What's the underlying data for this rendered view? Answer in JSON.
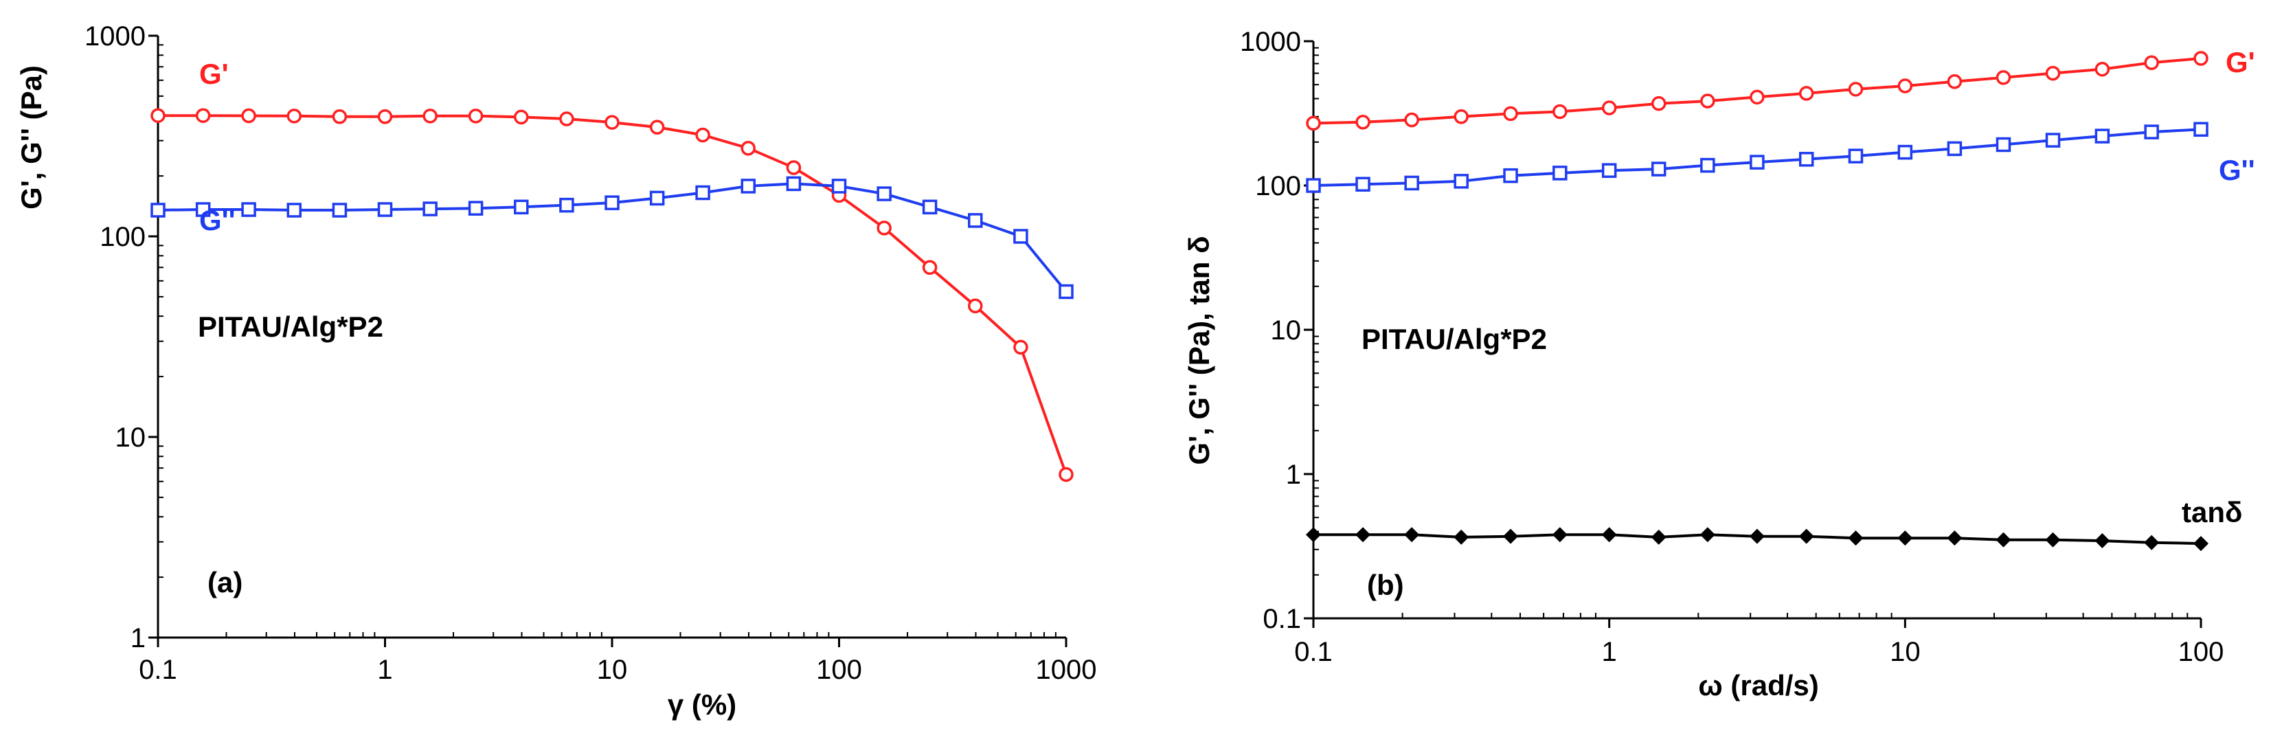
{
  "chart_data": [
    {
      "id": "a",
      "type": "line",
      "panel_label": "(a)",
      "annotation": "PITAU/Alg*P2",
      "xlabel": "γ  (%)",
      "ylabel": "G', G'' (Pa)",
      "xscale": "log",
      "yscale": "log",
      "xlim": [
        0.1,
        1000
      ],
      "ylim": [
        1,
        1000
      ],
      "xticks": [
        "0.1",
        "1",
        "10",
        "100",
        "1000"
      ],
      "yticks": [
        "1",
        "10",
        "100",
        "1000"
      ],
      "series": [
        {
          "name": "G'",
          "color": "#ff2020",
          "marker": "circle",
          "x": [
            0.1,
            0.158,
            0.251,
            0.398,
            0.631,
            1,
            1.58,
            2.51,
            3.98,
            6.31,
            10,
            15.8,
            25.1,
            39.8,
            63.1,
            100,
            158,
            251,
            398,
            631,
            1000
          ],
          "y": [
            400,
            400,
            399,
            398,
            395,
            395,
            398,
            398,
            393,
            385,
            370,
            350,
            320,
            275,
            220,
            160,
            110,
            70,
            45,
            28,
            6.5
          ]
        },
        {
          "name": "G''",
          "color": "#1f3df0",
          "marker": "square",
          "x": [
            0.1,
            0.158,
            0.251,
            0.398,
            0.631,
            1,
            1.58,
            2.51,
            3.98,
            6.31,
            10,
            15.8,
            25.1,
            39.8,
            63.1,
            100,
            158,
            251,
            398,
            631,
            1000
          ],
          "y": [
            135,
            136,
            136,
            135,
            135,
            136,
            137,
            138,
            140,
            143,
            147,
            155,
            165,
            178,
            183,
            178,
            163,
            140,
            120,
            100,
            53
          ]
        }
      ]
    },
    {
      "id": "b",
      "type": "line",
      "panel_label": "(b)",
      "annotation": "PITAU/Alg*P2",
      "xlabel": "ω (rad/s)",
      "ylabel": "G', G'' (Pa), tan δ",
      "xscale": "log",
      "yscale": "log",
      "xlim": [
        0.1,
        100
      ],
      "ylim": [
        0.1,
        1000
      ],
      "xticks": [
        "0.1",
        "1",
        "10",
        "100"
      ],
      "yticks": [
        "0.1",
        "1",
        "10",
        "100",
        "1000"
      ],
      "series": [
        {
          "name": "G'",
          "color": "#ff2020",
          "marker": "circle",
          "x": [
            0.1,
            0.147,
            0.215,
            0.316,
            0.464,
            0.681,
            1,
            1.47,
            2.15,
            3.16,
            4.64,
            6.81,
            10,
            14.7,
            21.5,
            31.6,
            46.4,
            68.1,
            100
          ],
          "y": [
            270,
            275,
            285,
            300,
            315,
            325,
            345,
            370,
            385,
            410,
            435,
            465,
            490,
            525,
            560,
            600,
            640,
            710,
            760
          ]
        },
        {
          "name": "G''",
          "color": "#1f3df0",
          "marker": "square",
          "x": [
            0.1,
            0.147,
            0.215,
            0.316,
            0.464,
            0.681,
            1,
            1.47,
            2.15,
            3.16,
            4.64,
            6.81,
            10,
            14.7,
            21.5,
            31.6,
            46.4,
            68.1,
            100
          ],
          "y": [
            100,
            102,
            104,
            107,
            117,
            122,
            127,
            130,
            138,
            145,
            152,
            160,
            170,
            180,
            192,
            206,
            220,
            235,
            245
          ]
        },
        {
          "name": "tanδ",
          "color": "#000000",
          "marker": "diamond",
          "x": [
            0.1,
            0.147,
            0.215,
            0.316,
            0.464,
            0.681,
            1,
            1.47,
            2.15,
            3.16,
            4.64,
            6.81,
            10,
            14.7,
            21.5,
            31.6,
            46.4,
            68.1,
            100
          ],
          "y": [
            0.38,
            0.38,
            0.38,
            0.365,
            0.37,
            0.38,
            0.38,
            0.365,
            0.38,
            0.37,
            0.37,
            0.36,
            0.36,
            0.36,
            0.35,
            0.35,
            0.345,
            0.335,
            0.33
          ]
        }
      ]
    }
  ]
}
